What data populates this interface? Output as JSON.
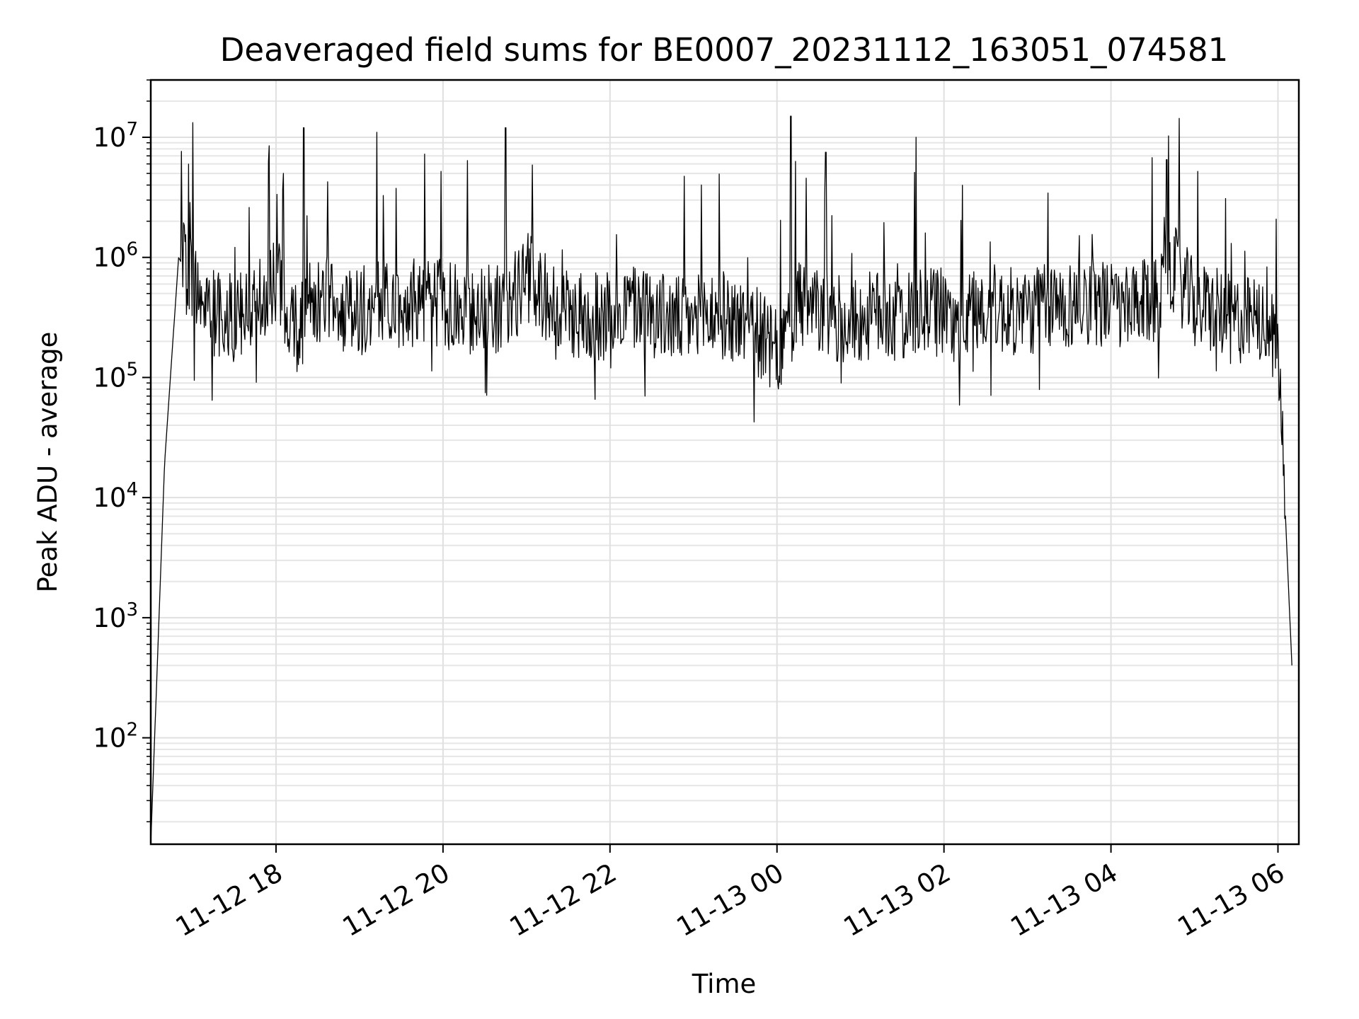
{
  "chart_data": {
    "type": "line",
    "title": "Deaveraged field sums for BE0007_20231112_163051_074581",
    "xlabel": "Time",
    "ylabel": "Peak ADU - average",
    "yscale": "log",
    "ylim": [
      13,
      30000000
    ],
    "xlim": [
      "2023-11-12 16:30",
      "2023-11-13 06:15"
    ],
    "grid": true,
    "line_color": "#000000",
    "x_ticks": [
      {
        "value": "2023-11-12 18:00",
        "label": "11-12 18"
      },
      {
        "value": "2023-11-12 20:00",
        "label": "11-12 20"
      },
      {
        "value": "2023-11-12 22:00",
        "label": "11-12 22"
      },
      {
        "value": "2023-11-13 00:00",
        "label": "11-13 00"
      },
      {
        "value": "2023-11-13 02:00",
        "label": "11-13 02"
      },
      {
        "value": "2023-11-13 04:00",
        "label": "11-13 04"
      },
      {
        "value": "2023-11-13 06:00",
        "label": "11-13 06"
      }
    ],
    "y_ticks": [
      {
        "value": 100,
        "base": "10",
        "exp": "2"
      },
      {
        "value": 1000,
        "base": "10",
        "exp": "3"
      },
      {
        "value": 10000,
        "base": "10",
        "exp": "4"
      },
      {
        "value": 100000,
        "base": "10",
        "exp": "5"
      },
      {
        "value": 1000000,
        "base": "10",
        "exp": "6"
      },
      {
        "value": 10000000,
        "base": "10",
        "exp": "7"
      }
    ],
    "series": [
      {
        "x": [
          "2023-11-12 16:30",
          "2023-11-12 16:40",
          "2023-11-12 16:50",
          "2023-11-12 17:00",
          "2023-11-12 17:15",
          "2023-11-12 17:30",
          "2023-11-12 17:45",
          "2023-11-12 18:00",
          "2023-11-12 18:15",
          "2023-11-12 18:30",
          "2023-11-12 18:45",
          "2023-11-12 19:00",
          "2023-11-12 19:15",
          "2023-11-12 19:30",
          "2023-11-12 19:45",
          "2023-11-12 20:00",
          "2023-11-12 20:15",
          "2023-11-12 20:30",
          "2023-11-12 20:45",
          "2023-11-12 21:00",
          "2023-11-12 21:15",
          "2023-11-12 21:30",
          "2023-11-12 21:45",
          "2023-11-12 22:00",
          "2023-11-12 22:15",
          "2023-11-12 22:30",
          "2023-11-12 22:45",
          "2023-11-12 23:00",
          "2023-11-12 23:15",
          "2023-11-12 23:30",
          "2023-11-12 23:45",
          "2023-11-13 00:00",
          "2023-11-13 00:15",
          "2023-11-13 00:30",
          "2023-11-13 00:45",
          "2023-11-13 01:00",
          "2023-11-13 01:15",
          "2023-11-13 01:30",
          "2023-11-13 01:45",
          "2023-11-13 02:00",
          "2023-11-13 02:15",
          "2023-11-13 02:30",
          "2023-11-13 02:45",
          "2023-11-13 03:00",
          "2023-11-13 03:15",
          "2023-11-13 03:30",
          "2023-11-13 03:45",
          "2023-11-13 04:00",
          "2023-11-13 04:15",
          "2023-11-13 04:30",
          "2023-11-13 04:45",
          "2023-11-13 05:00",
          "2023-11-13 05:15",
          "2023-11-13 05:30",
          "2023-11-13 05:45",
          "2023-11-13 06:00",
          "2023-11-13 06:10"
        ],
        "y": [
          13,
          20000,
          1000000,
          600000,
          350000,
          300000,
          350000,
          700000,
          250000,
          450000,
          400000,
          350000,
          450000,
          400000,
          450000,
          400000,
          350000,
          400000,
          350000,
          700000,
          450000,
          350000,
          300000,
          350000,
          400000,
          350000,
          300000,
          300000,
          350000,
          300000,
          250000,
          150000,
          400000,
          350000,
          300000,
          300000,
          350000,
          300000,
          350000,
          350000,
          300000,
          400000,
          350000,
          350000,
          400000,
          400000,
          450000,
          400000,
          350000,
          450000,
          800000,
          400000,
          350000,
          300000,
          300000,
          200000,
          400
        ]
      }
    ],
    "annotated_peaks": [
      {
        "x": "2023-11-12 17:55",
        "y": 8500000
      },
      {
        "x": "2023-11-12 18:20",
        "y": 12000000
      },
      {
        "x": "2023-11-12 20:45",
        "y": 12000000
      },
      {
        "x": "2023-11-13 00:10",
        "y": 15000000
      },
      {
        "x": "2023-11-13 00:35",
        "y": 7500000
      },
      {
        "x": "2023-11-13 01:40",
        "y": 10000000
      },
      {
        "x": "2023-11-13 04:40",
        "y": 6500000
      }
    ]
  }
}
